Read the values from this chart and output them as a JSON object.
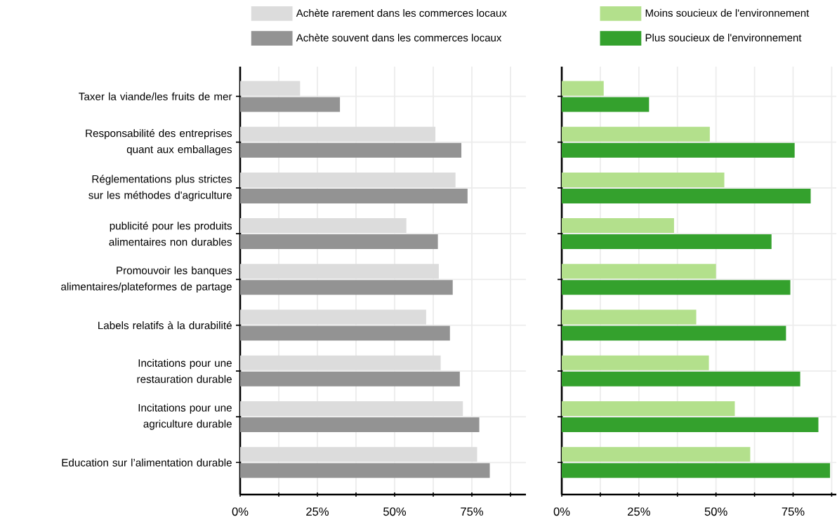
{
  "chart_data": [
    {
      "type": "bar",
      "orientation": "horizontal",
      "categories": [
        "Taxer la viande/les fruits de mer",
        "Responsabilité des entreprises quant aux emballages",
        "Réglementations plus strictes sur les méthodes d'agriculture",
        "publicité pour les produits alimentaires non durables",
        "Promouvoir les banques alimentaires/plateformes de partage",
        "Labels relatifs à la durabilité",
        "Incitations pour une restauration durable",
        "Incitations pour une agriculture durable",
        "Education sur l’alimentation durable"
      ],
      "series": [
        {
          "name": "Achète rarement dans les commerces locaux",
          "color": "#dcdcdc",
          "values": [
            19.4,
            63.2,
            69.7,
            53.8,
            64.3,
            60.2,
            64.9,
            72.1,
            76.7
          ]
        },
        {
          "name": "Achète souvent dans les commerces locaux",
          "color": "#939393",
          "values": [
            32.3,
            71.6,
            73.6,
            64.0,
            68.8,
            67.9,
            71.1,
            77.4,
            80.8
          ]
        }
      ],
      "xlim": [
        0,
        92.5
      ],
      "xticks": [
        {
          "value": 0,
          "label": "0%"
        },
        {
          "value": 12.5,
          "label": null
        },
        {
          "value": 25,
          "label": "25%"
        },
        {
          "value": 37.5,
          "label": null
        },
        {
          "value": 50,
          "label": "50%"
        },
        {
          "value": 62.5,
          "label": null
        },
        {
          "value": 75,
          "label": "75%"
        },
        {
          "value": 87.5,
          "label": null
        }
      ],
      "grid": true,
      "legend": "top"
    },
    {
      "type": "bar",
      "orientation": "horizontal",
      "categories": [
        null,
        null,
        null,
        null,
        null,
        null,
        null,
        null,
        null
      ],
      "series": [
        {
          "name": "Moins soucieux de l'environnement",
          "color": "#b3e08c",
          "values": [
            13.6,
            48.0,
            52.7,
            36.4,
            50.0,
            43.6,
            47.7,
            56.1,
            61.1
          ]
        },
        {
          "name": "Plus soucieux de l'environnement",
          "color": "#34a12d",
          "values": [
            28.3,
            75.5,
            80.7,
            68.0,
            74.1,
            72.7,
            77.3,
            83.2,
            87.0
          ]
        }
      ],
      "xlim": [
        0,
        89
      ],
      "xticks": [
        {
          "value": 0,
          "label": "0%"
        },
        {
          "value": 12.5,
          "label": null
        },
        {
          "value": 25,
          "label": "25%"
        },
        {
          "value": 37.5,
          "label": null
        },
        {
          "value": 50,
          "label": "50%"
        },
        {
          "value": 62.5,
          "label": null
        },
        {
          "value": 75,
          "label": "75%"
        },
        {
          "value": 87.5,
          "label": null
        }
      ],
      "grid": true,
      "legend": "top",
      "tick_labels": "x"
    }
  ]
}
